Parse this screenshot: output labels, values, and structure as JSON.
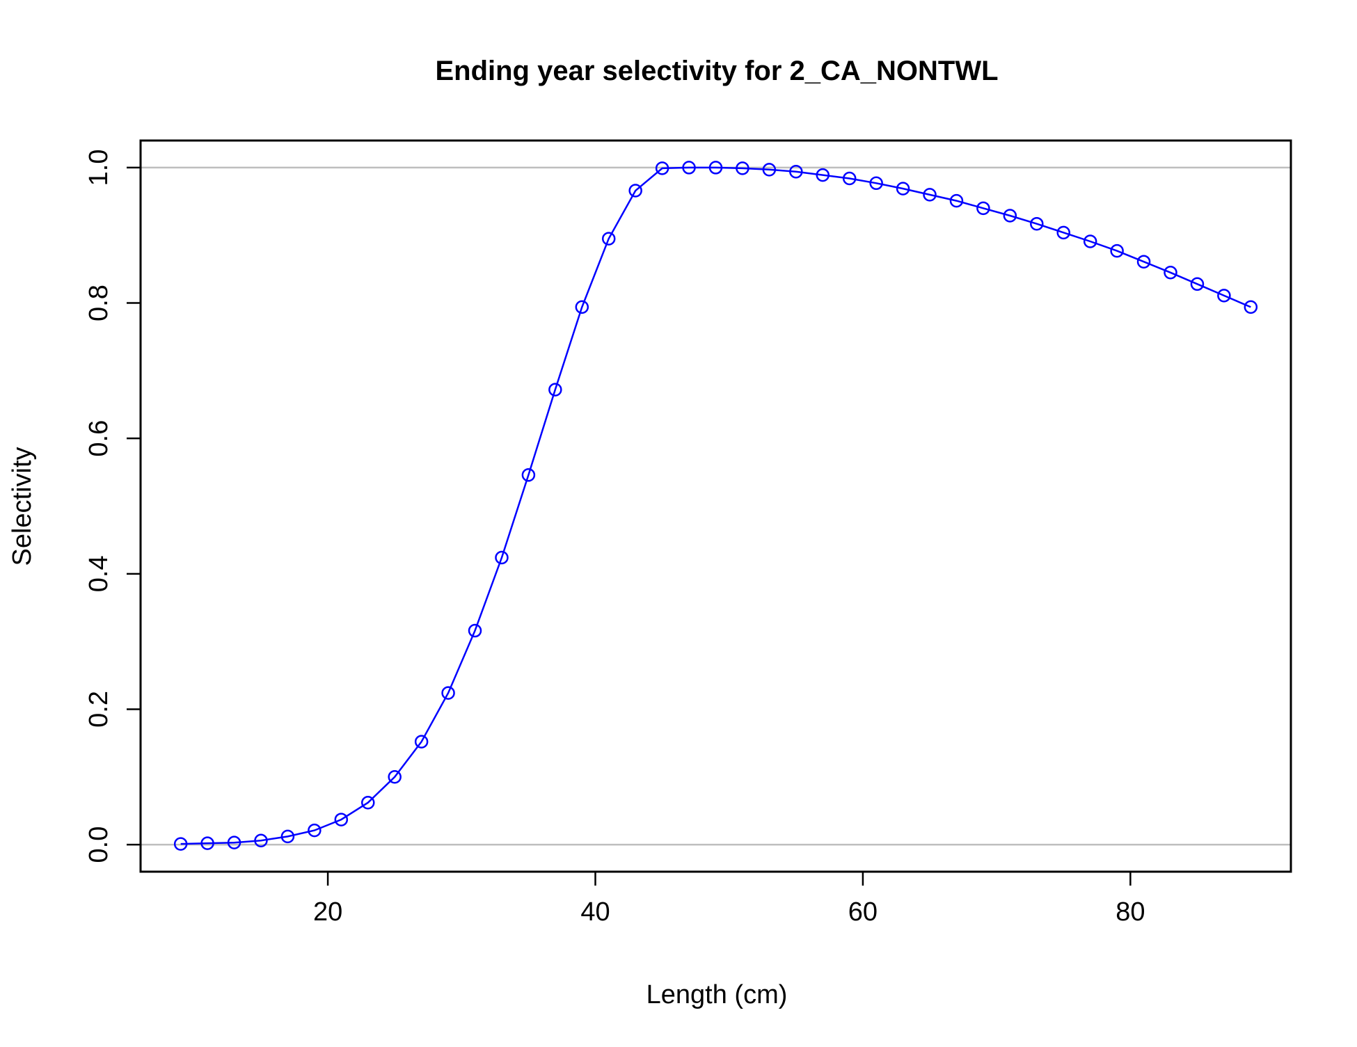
{
  "chart_data": {
    "type": "line",
    "title": "Ending year selectivity for 2_CA_NONTWL",
    "xlabel": "Length (cm)",
    "ylabel": "Selectivity",
    "xlim": [
      6,
      92
    ],
    "ylim": [
      -0.04,
      1.04
    ],
    "x_ticks": [
      20,
      40,
      60,
      80
    ],
    "x_tick_labels": [
      "20",
      "40",
      "60",
      "80"
    ],
    "y_ticks": [
      0,
      0.2,
      0.4,
      0.6,
      0.8,
      1.0
    ],
    "y_tick_labels": [
      "0.0",
      "0.2",
      "0.4",
      "0.6",
      "0.8",
      "1.0"
    ],
    "reference_lines_y": [
      0,
      1
    ],
    "grid": false,
    "legend": "none",
    "colors": {
      "series": "#0000ff",
      "reference": "#bebebe",
      "frame": "#000000"
    },
    "series": [
      {
        "marker": "open-circle",
        "x": [
          9,
          11,
          13,
          15,
          17,
          19,
          21,
          23,
          25,
          27,
          29,
          31,
          33,
          35,
          37,
          39,
          41,
          43,
          45,
          47,
          49,
          51,
          53,
          55,
          57,
          59,
          61,
          63,
          65,
          67,
          69,
          71,
          73,
          75,
          77,
          79,
          81,
          83,
          85,
          87,
          89
        ],
        "y": [
          0.001,
          0.002,
          0.003,
          0.006,
          0.012,
          0.021,
          0.037,
          0.062,
          0.1,
          0.152,
          0.224,
          0.316,
          0.424,
          0.546,
          0.672,
          0.794,
          0.895,
          0.966,
          0.999,
          1.0,
          1.0,
          0.999,
          0.997,
          0.994,
          0.989,
          0.984,
          0.977,
          0.969,
          0.96,
          0.951,
          0.94,
          0.929,
          0.917,
          0.904,
          0.891,
          0.877,
          0.861,
          0.845,
          0.828,
          0.811,
          0.794
        ]
      }
    ]
  }
}
